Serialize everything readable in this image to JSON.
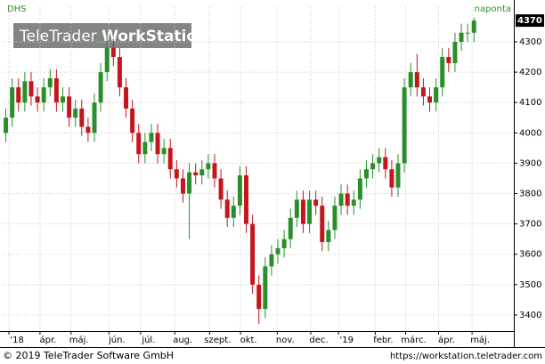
{
  "chart_data": {
    "type": "candlestick",
    "symbol": "DHS",
    "interval": "naponta",
    "watermark": [
      "TeleTrader",
      "WorkStation"
    ],
    "footer_left": "© 2019 TeleTrader Software GmbH",
    "footer_right": "https://workstation.teletrader.com",
    "up_color": "#2a8f2a",
    "down_color": "#c4161c",
    "grid": true,
    "open": [
      4000,
      4050,
      4150,
      4100,
      4170,
      4120,
      4100,
      4150,
      4180,
      4100,
      4120,
      4050,
      4080,
      4020,
      4000,
      4100,
      4200,
      4280,
      4250,
      4150,
      4080,
      4000,
      3930,
      3970,
      4000,
      3930,
      3950,
      3880,
      3850,
      3800,
      3870,
      3860,
      3880,
      3900,
      3850,
      3780,
      3720,
      3760,
      3860,
      3700,
      3500,
      3420,
      3560,
      3600,
      3620,
      3650,
      3720,
      3780,
      3700,
      3780,
      3760,
      3640,
      3680,
      3760,
      3800,
      3760,
      3780,
      3850,
      3880,
      3900,
      3920,
      3880,
      3820,
      3900,
      4150,
      4200,
      4150,
      4120,
      4100,
      4150,
      4250,
      4230,
      4300,
      4330,
      4330
    ],
    "high": [
      4080,
      4180,
      4180,
      4200,
      4200,
      4150,
      4180,
      4210,
      4210,
      4150,
      4150,
      4110,
      4110,
      4050,
      4130,
      4230,
      4330,
      4310,
      4280,
      4180,
      4110,
      4030,
      4000,
      4030,
      4030,
      3980,
      3980,
      3910,
      3880,
      3900,
      3900,
      3910,
      3930,
      3930,
      3880,
      3810,
      3790,
      3890,
      3890,
      3730,
      3530,
      3590,
      3630,
      3650,
      3680,
      3750,
      3810,
      3810,
      3810,
      3810,
      3790,
      3710,
      3790,
      3830,
      3830,
      3810,
      3880,
      3910,
      3930,
      3950,
      3950,
      3910,
      3930,
      4180,
      4230,
      4260,
      4180,
      4150,
      4180,
      4280,
      4280,
      4330,
      4360,
      4360,
      4380
    ],
    "low": [
      3970,
      4020,
      4070,
      4070,
      4090,
      4070,
      4070,
      4120,
      4070,
      4070,
      4020,
      4020,
      3990,
      3970,
      3970,
      4070,
      4170,
      4220,
      4120,
      4050,
      3970,
      3900,
      3900,
      3940,
      3900,
      3900,
      3850,
      3820,
      3770,
      3650,
      3830,
      3830,
      3850,
      3820,
      3750,
      3690,
      3690,
      3730,
      3670,
      3470,
      3370,
      3390,
      3530,
      3570,
      3590,
      3620,
      3690,
      3670,
      3670,
      3730,
      3610,
      3610,
      3650,
      3730,
      3730,
      3730,
      3750,
      3820,
      3850,
      3870,
      3850,
      3790,
      3790,
      3870,
      4120,
      4120,
      4090,
      4070,
      4070,
      4120,
      4200,
      4200,
      4270,
      4300,
      4300
    ],
    "close": [
      4050,
      4150,
      4100,
      4170,
      4120,
      4100,
      4150,
      4180,
      4100,
      4120,
      4050,
      4080,
      4020,
      4000,
      4100,
      4200,
      4280,
      4250,
      4150,
      4080,
      4000,
      3930,
      3970,
      4000,
      3930,
      3950,
      3880,
      3850,
      3800,
      3870,
      3860,
      3880,
      3900,
      3850,
      3780,
      3720,
      3760,
      3860,
      3700,
      3500,
      3420,
      3560,
      3600,
      3620,
      3650,
      3720,
      3780,
      3700,
      3780,
      3760,
      3640,
      3680,
      3760,
      3800,
      3760,
      3780,
      3850,
      3880,
      3900,
      3920,
      3880,
      3820,
      3900,
      4150,
      4200,
      4150,
      4120,
      4100,
      4150,
      4250,
      4230,
      4300,
      4330,
      4330,
      4370
    ],
    "xlim": [
      -0.5,
      80.3
    ],
    "xticks": [
      {
        "value": 0.5,
        "label": "'18"
      },
      {
        "value": 5.4,
        "label": "ápr."
      },
      {
        "value": 10.3,
        "label": "máj."
      },
      {
        "value": 16.3,
        "label": "jún."
      },
      {
        "value": 21.3,
        "label": "júl."
      },
      {
        "value": 26.7,
        "label": "aug."
      },
      {
        "value": 32.2,
        "label": "szept."
      },
      {
        "value": 37.1,
        "label": "okt."
      },
      {
        "value": 42.9,
        "label": "nov."
      },
      {
        "value": 48.2,
        "label": "dec."
      },
      {
        "value": 52.6,
        "label": "'19"
      },
      {
        "value": 58.4,
        "label": "febr."
      },
      {
        "value": 63.2,
        "label": "márc."
      },
      {
        "value": 68.4,
        "label": "ápr."
      },
      {
        "value": 73.7,
        "label": "máj."
      }
    ],
    "ylim": [
      3347,
      4385
    ],
    "yticks": [
      3400,
      3500,
      3600,
      3700,
      3800,
      3900,
      4000,
      4100,
      4200,
      4300
    ]
  }
}
